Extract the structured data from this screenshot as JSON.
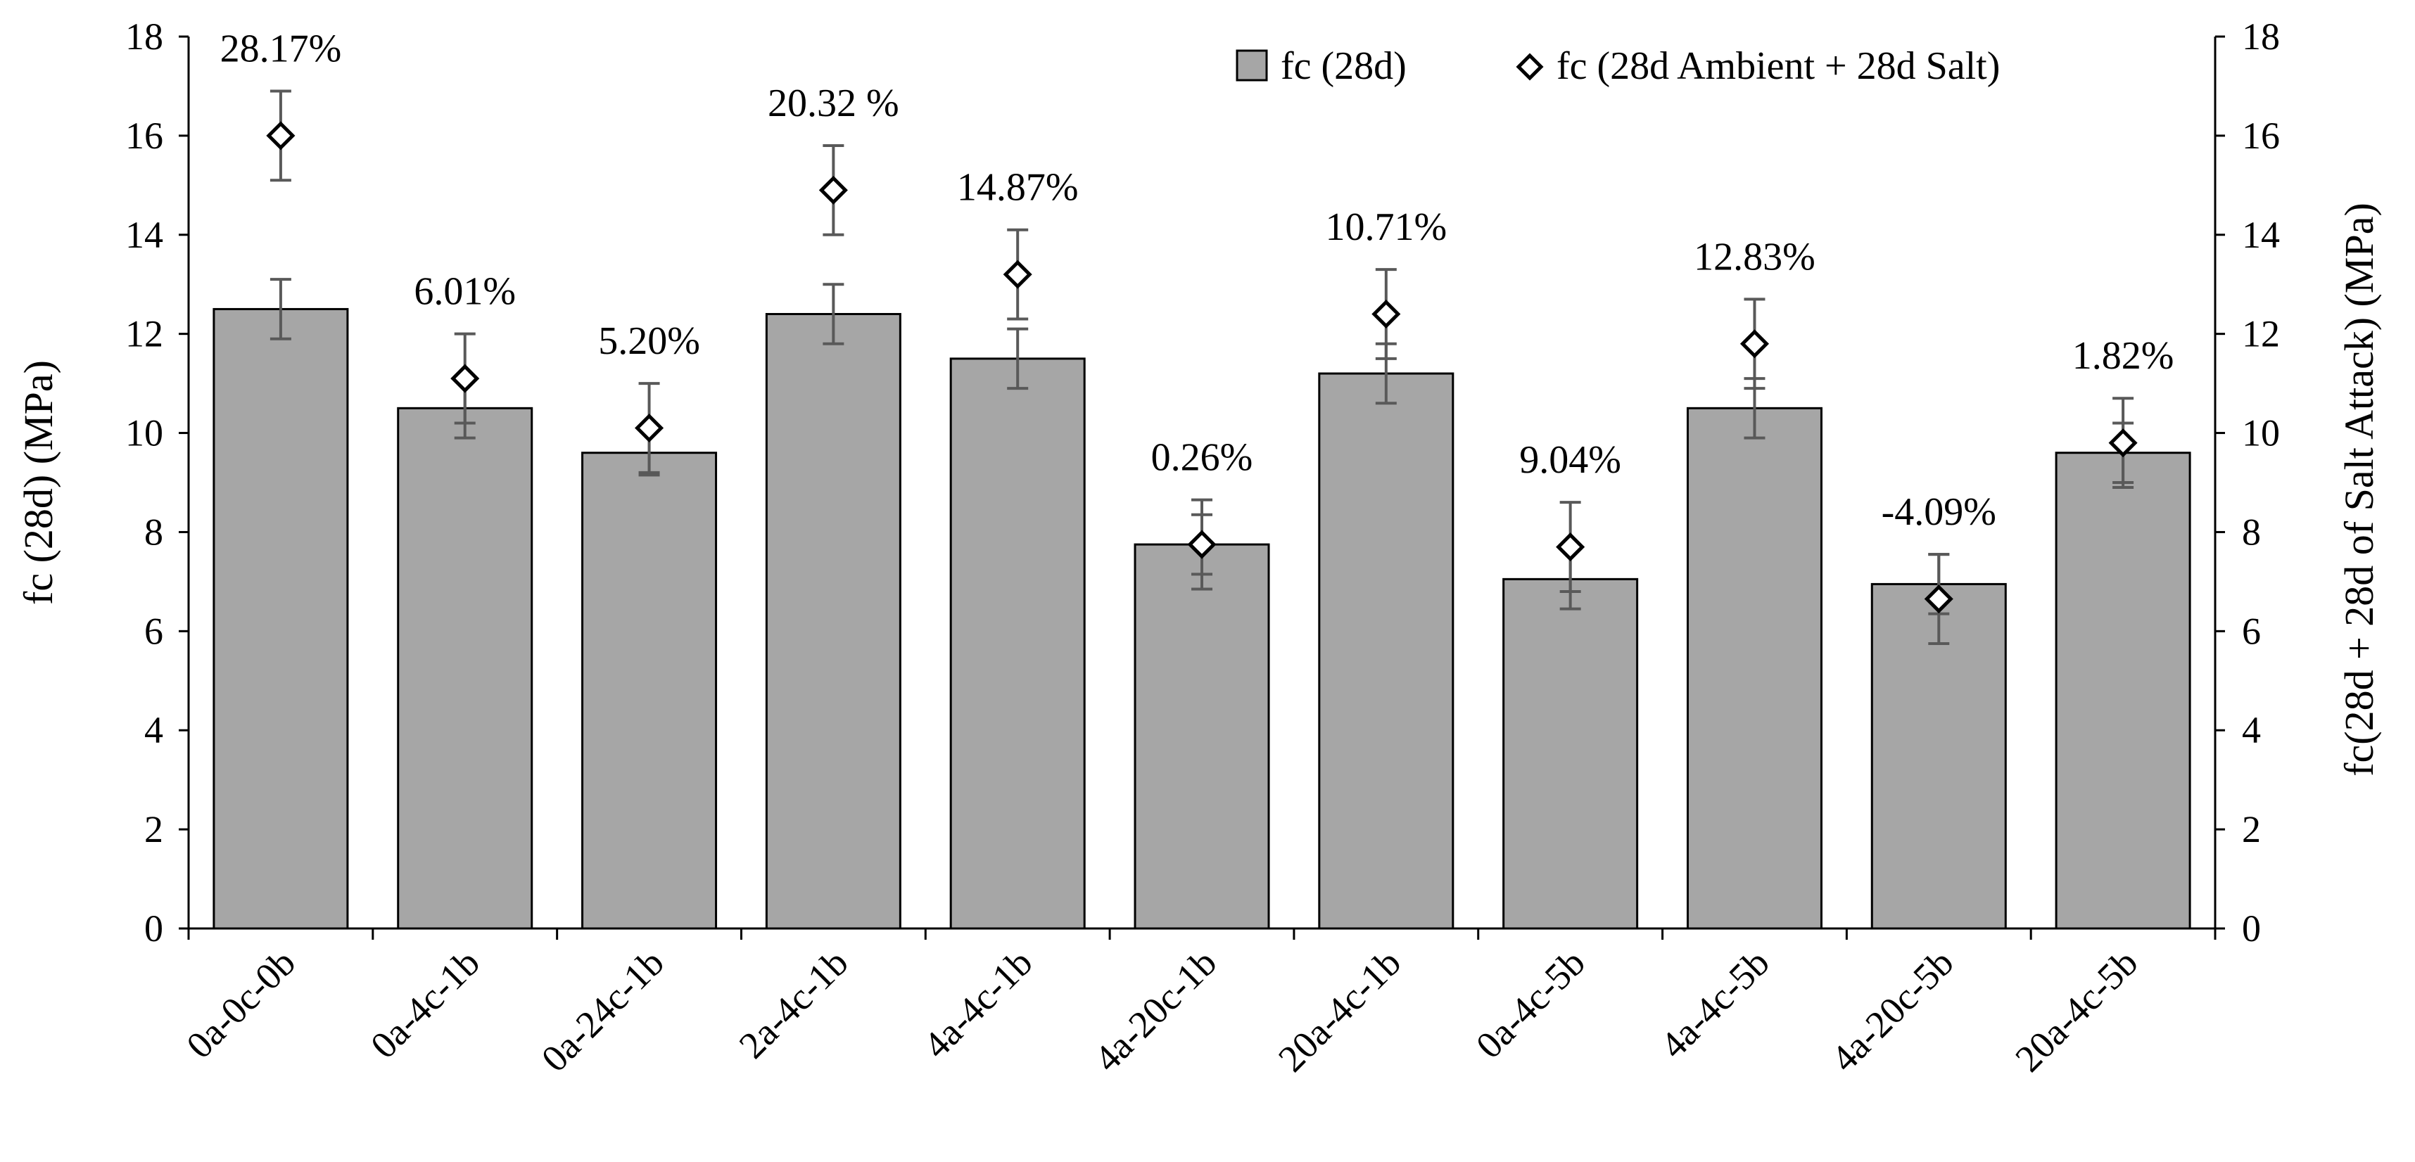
{
  "chart_data": {
    "type": "bar",
    "title": "",
    "categories": [
      "0a-0c-0b",
      "0a-4c-1b",
      "0a-24c-1b",
      "2a-4c-1b",
      "4a-4c-1b",
      "4a-20c-1b",
      "20a-4c-1b",
      "0a-4c-5b",
      "4a-4c-5b",
      "4a-20c-5b",
      "20a-4c-5b"
    ],
    "series": [
      {
        "name": "fc (28d)",
        "kind": "bar",
        "axis": "left",
        "color": "#a6a6a6",
        "values": [
          12.5,
          10.5,
          9.6,
          12.4,
          11.5,
          7.75,
          11.2,
          7.05,
          10.5,
          6.95,
          9.6
        ],
        "error": [
          0.6,
          0.6,
          0.45,
          0.6,
          0.6,
          0.6,
          0.6,
          0.6,
          0.6,
          0.6,
          0.6
        ]
      },
      {
        "name": "fc (28d Ambient + 28d Salt)",
        "kind": "marker",
        "marker": "diamond",
        "axis": "right",
        "values": [
          16.0,
          11.1,
          10.1,
          14.9,
          13.2,
          7.75,
          12.4,
          7.7,
          11.8,
          6.65,
          9.8
        ],
        "error": [
          0.9,
          0.9,
          0.9,
          0.9,
          0.9,
          0.9,
          0.9,
          0.9,
          0.9,
          0.9,
          0.9
        ]
      }
    ],
    "data_labels": [
      "28.17%",
      "6.01%",
      "5.20%",
      "20.32 %",
      "14.87%",
      "0.26%",
      "10.71%",
      "9.04%",
      "12.83%",
      "-4.09%",
      "1.82%"
    ],
    "ylabel": "fc (28d) (MPa)",
    "y2label": "fc(28d + 28d of Salt Attack) (MPa)",
    "xlabel": "",
    "ylim": [
      0,
      18
    ],
    "y2lim": [
      0,
      18
    ],
    "yticks": [
      0,
      2,
      4,
      6,
      8,
      10,
      12,
      14,
      16,
      18
    ],
    "legend_position": "top-right",
    "grid": false
  }
}
